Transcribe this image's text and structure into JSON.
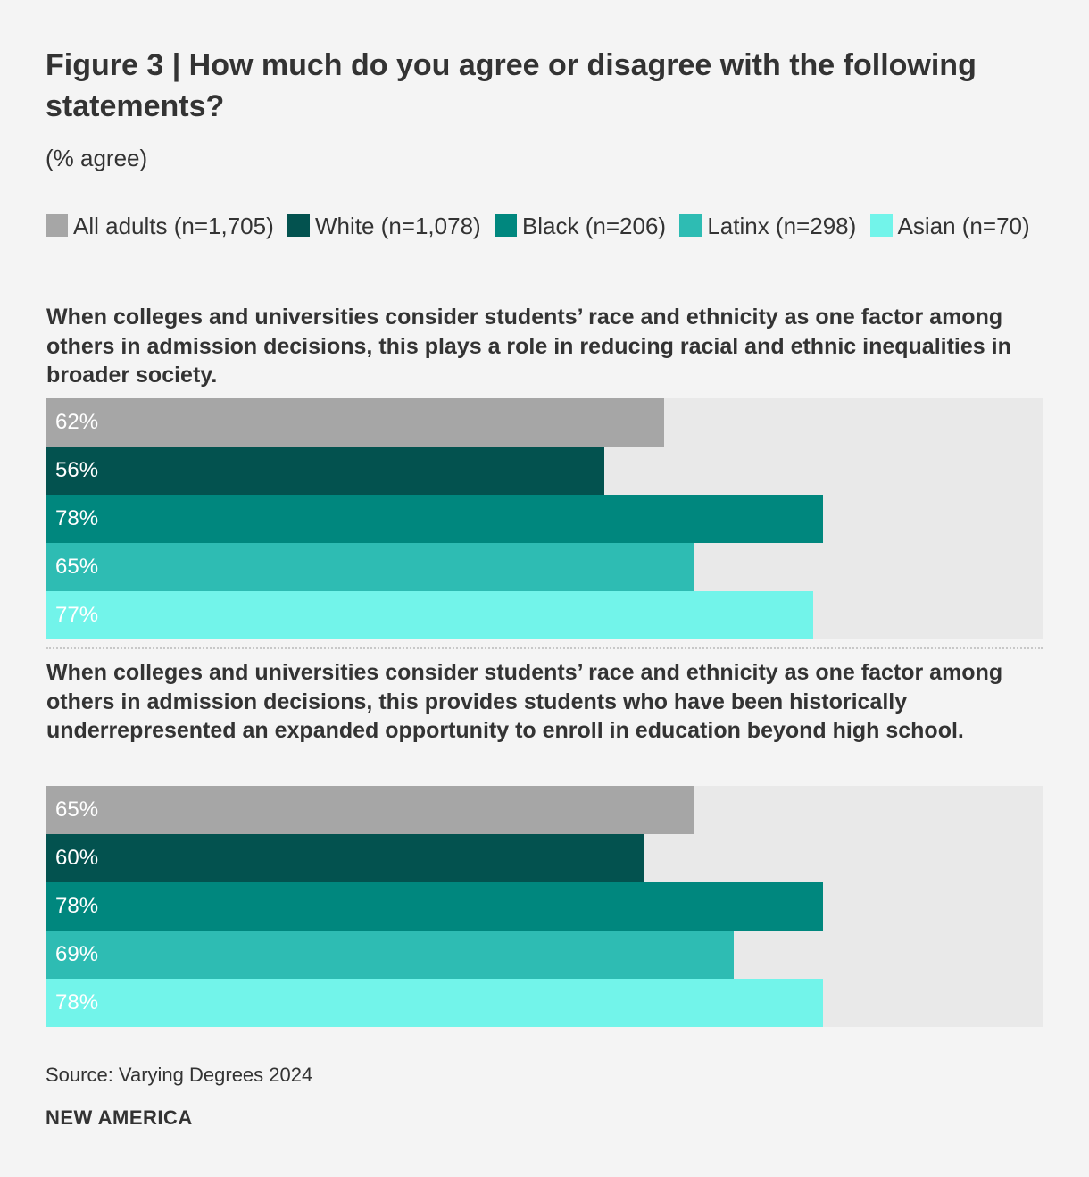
{
  "chart_data": {
    "type": "bar",
    "orientation": "horizontal",
    "title": "Figure 3 | How much do you agree or disagree with the following statements?",
    "subtitle": "(% agree)",
    "xlim": [
      0,
      100
    ],
    "legend_position": "top",
    "legend": [
      {
        "label": "All adults (n=1,705)",
        "color": "#a6a6a6"
      },
      {
        "label": "White (n=1,078)",
        "color": "#03524f"
      },
      {
        "label": "Black (n=206)",
        "color": "#00877e"
      },
      {
        "label": "Latinx (n=298)",
        "color": "#2ebcb3"
      },
      {
        "label": "Asian (n=70)",
        "color": "#72f4ea"
      }
    ],
    "panels": [
      {
        "question": "When colleges and universities consider students’ race and ethnicity as one factor among others in admission decisions, this plays a role in reducing racial and ethnic inequalities in broader society.",
        "values": [
          62,
          56,
          78,
          65,
          77
        ],
        "labels": [
          "62%",
          "56%",
          "78%",
          "65%",
          "77%"
        ]
      },
      {
        "question": "When colleges and universities consider students’ race and ethnicity as one factor among others in admission decisions, this provides students who have been historically underrepresented an expanded opportunity to enroll in education beyond high school.",
        "values": [
          65,
          60,
          78,
          69,
          78
        ],
        "labels": [
          "65%",
          "60%",
          "78%",
          "69%",
          "78%"
        ]
      }
    ]
  },
  "footer": {
    "source": "Source: Varying Degrees 2024",
    "brand": "NEW AMERICA"
  }
}
